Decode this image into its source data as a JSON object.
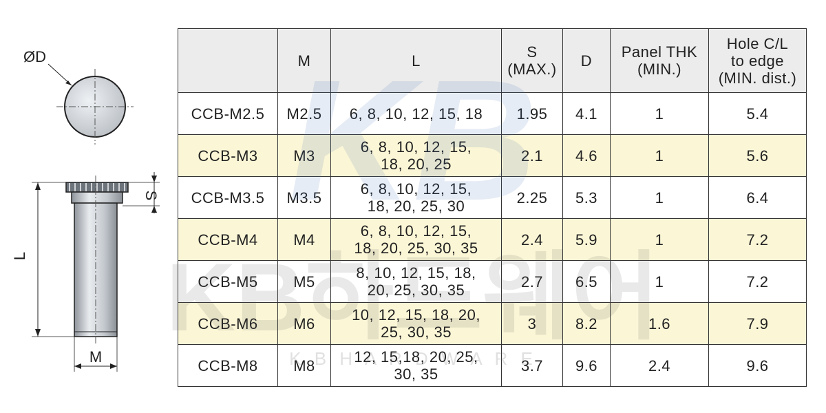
{
  "drawing": {
    "diameter_label": "ØD",
    "stroke_label": "S",
    "length_label": "L",
    "thread_label": "M"
  },
  "table": {
    "headers": {
      "part": "",
      "m": "M",
      "l": "L",
      "s": [
        "S",
        "(MAX.)"
      ],
      "d": "D",
      "panel": [
        "Panel THK",
        "(MIN.)"
      ],
      "hole": [
        "Hole C/L",
        "to edge",
        "(MIN. dist.)"
      ]
    },
    "rows": [
      {
        "part": "CCB-M2.5",
        "m": "M2.5",
        "l": [
          "6, 8, 10, 12, 15, 18"
        ],
        "s": "1.95",
        "d": "4.1",
        "panel": "1",
        "hole": "5.4"
      },
      {
        "part": "CCB-M3",
        "m": "M3",
        "l": [
          "6, 8, 10, 12, 15,",
          "18, 20, 25"
        ],
        "s": "2.1",
        "d": "4.6",
        "panel": "1",
        "hole": "5.6"
      },
      {
        "part": "CCB-M3.5",
        "m": "M3.5",
        "l": [
          "6, 8, 10, 12, 15,",
          "18, 20, 25, 30"
        ],
        "s": "2.25",
        "d": "5.3",
        "panel": "1",
        "hole": "6.4"
      },
      {
        "part": "CCB-M4",
        "m": "M4",
        "l": [
          "6, 8, 10, 12, 15,",
          "18, 20, 25, 30, 35"
        ],
        "s": "2.4",
        "d": "5.9",
        "panel": "1",
        "hole": "7.2"
      },
      {
        "part": "CCB-M5",
        "m": "M5",
        "l": [
          "8, 10, 12, 15, 18,",
          "20, 25, 30, 35"
        ],
        "s": "2.7",
        "d": "6.5",
        "panel": "1",
        "hole": "7.2"
      },
      {
        "part": "CCB-M6",
        "m": "M6",
        "l": [
          "10, 12, 15, 18, 20,",
          "25, 30, 35"
        ],
        "s": "3",
        "d": "8.2",
        "panel": "1.6",
        "hole": "7.9"
      },
      {
        "part": "CCB-M8",
        "m": "M8",
        "l": [
          "12, 15,18, 20, 25,",
          "30, 35"
        ],
        "s": "3.7",
        "d": "9.6",
        "panel": "2.4",
        "hole": "9.6"
      }
    ]
  },
  "watermark": {
    "logo": "KB",
    "title": "KB하드웨어",
    "subtitle": "K B H A R D W A R E"
  }
}
